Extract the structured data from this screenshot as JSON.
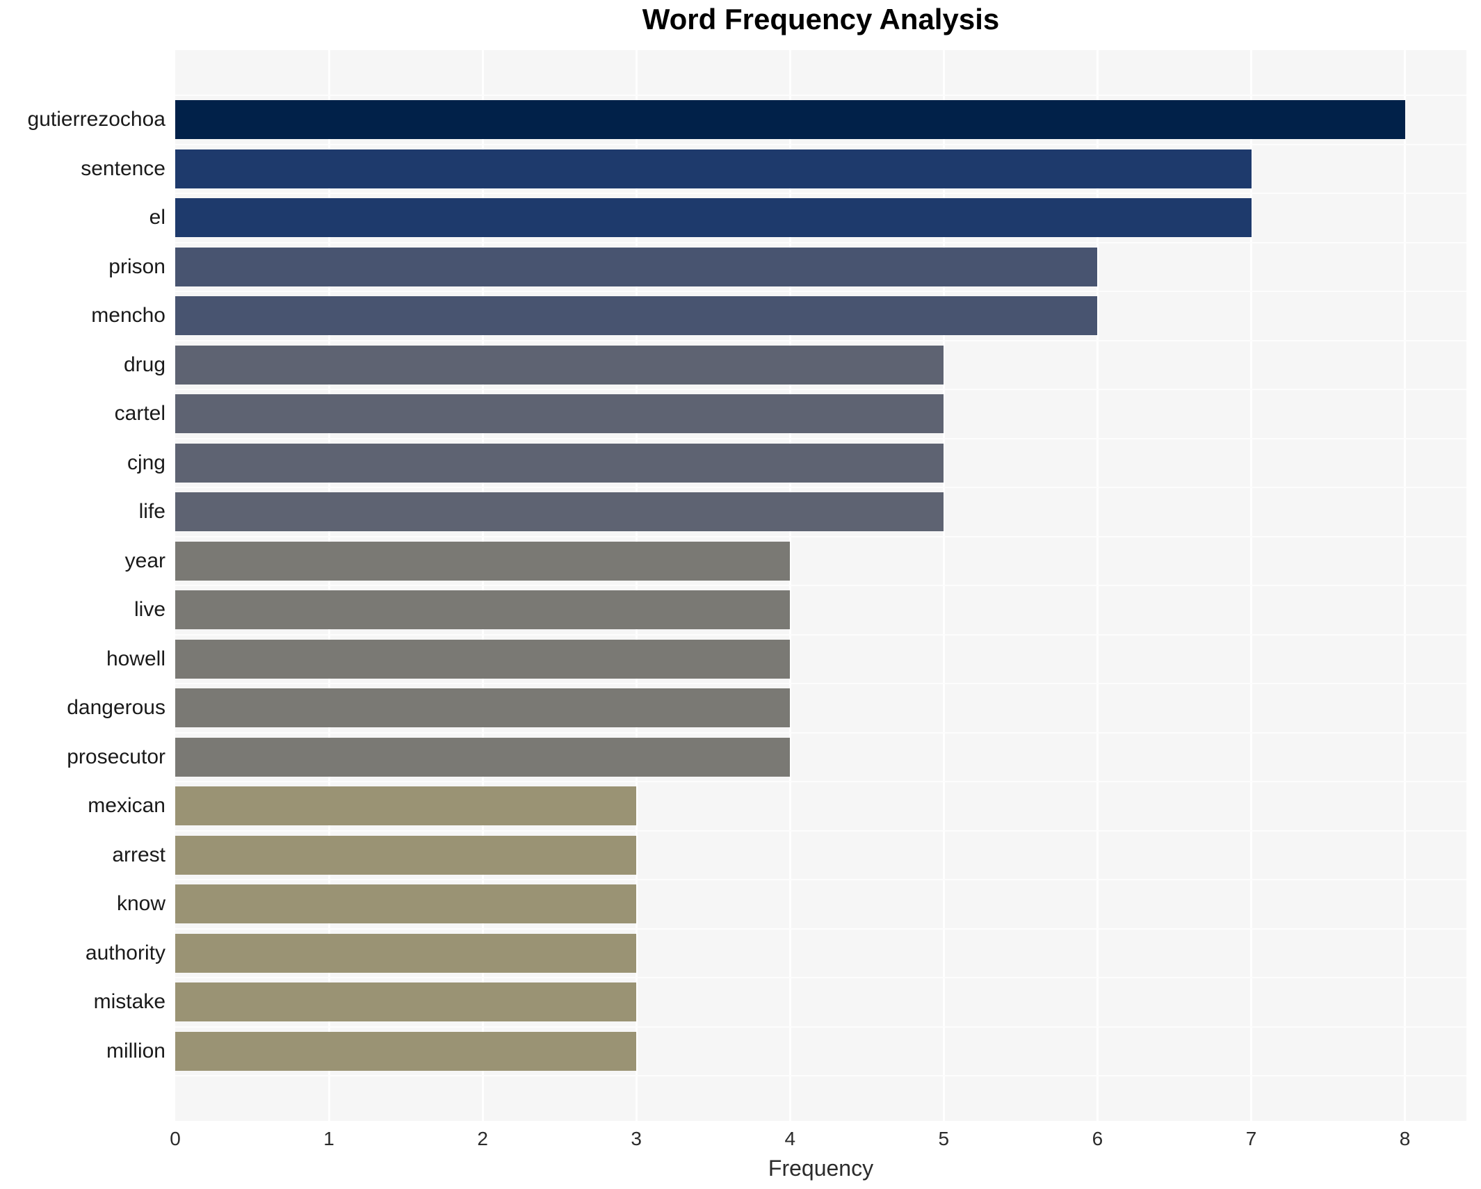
{
  "title": "Word Frequency Analysis",
  "chart_data": {
    "type": "bar",
    "orientation": "horizontal",
    "title": "Word Frequency Analysis",
    "xlabel": "Frequency",
    "ylabel": "",
    "categories": [
      "gutierrezochoa",
      "sentence",
      "el",
      "prison",
      "mencho",
      "drug",
      "cartel",
      "cjng",
      "life",
      "year",
      "live",
      "howell",
      "dangerous",
      "prosecutor",
      "mexican",
      "arrest",
      "know",
      "authority",
      "mistake",
      "million"
    ],
    "values": [
      8,
      7,
      7,
      6,
      6,
      5,
      5,
      5,
      5,
      4,
      4,
      4,
      4,
      4,
      3,
      3,
      3,
      3,
      3,
      3
    ],
    "xlim": [
      0,
      8.4
    ],
    "xticks": [
      0,
      1,
      2,
      3,
      4,
      5,
      6,
      7,
      8
    ],
    "grid": true,
    "legend": false,
    "colors_by_value": {
      "8": "#012149",
      "7": "#1e3a6c",
      "6": "#485470",
      "5": "#5e6372",
      "4": "#7a7974",
      "3": "#9a9374"
    },
    "plot_bg": "#f6f6f6",
    "grid_color": "#ffffff",
    "figure_bg": "#ffffff",
    "label_color": "#1a1a1a",
    "tick_color": "#2b2b2b"
  }
}
